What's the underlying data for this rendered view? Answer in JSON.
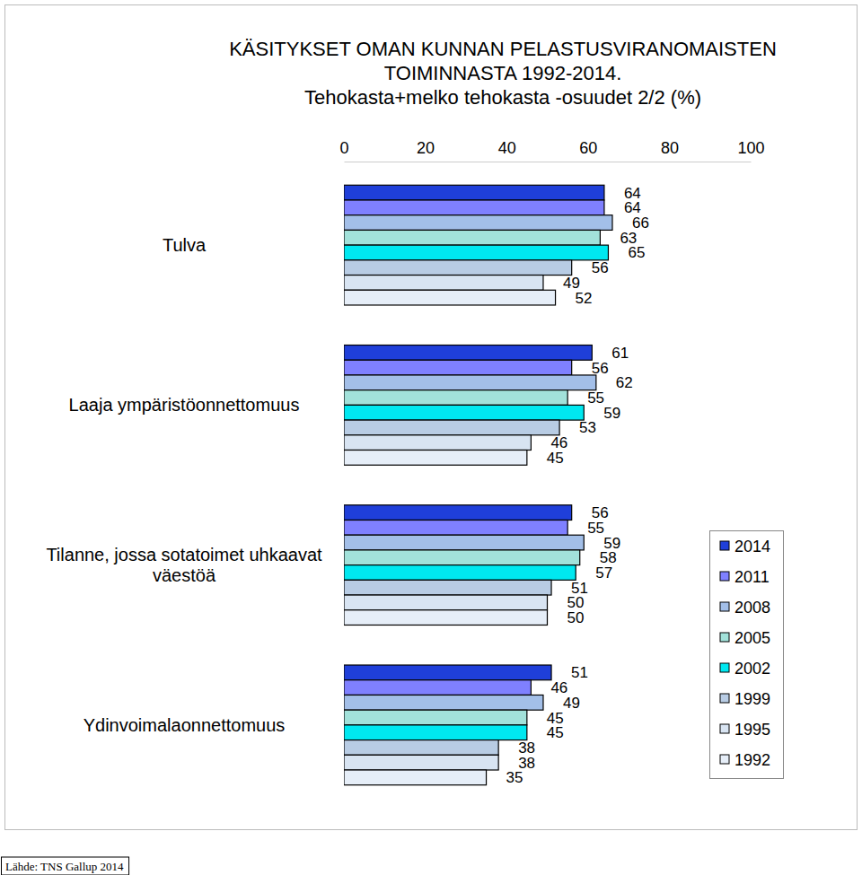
{
  "chart_data": {
    "type": "bar",
    "orientation": "horizontal",
    "title": "KÄSITYKSET OMAN KUNNAN PELASTUSVIRANOMAISTEN\nTOIMINNASTA 1992-2014.",
    "subtitle": "Tehokasta+melko tehokasta -osuudet 2/2 (%)",
    "annotations": [
      "Lähde: TNS Gallup 2014"
    ],
    "categories": [
      "Tulva",
      "Laaja ympäristöonnettomuus",
      "Tilanne, jossa sotatoimet uhkaavat väestöä",
      "Ydinvoimalaonnettomuus"
    ],
    "series": [
      {
        "name": "2014",
        "color": "#1f3fd9",
        "values": [
          64,
          61,
          56,
          51
        ]
      },
      {
        "name": "2011",
        "color": "#7f80ff",
        "values": [
          64,
          56,
          55,
          46
        ]
      },
      {
        "name": "2008",
        "color": "#a3bfe8",
        "values": [
          66,
          62,
          59,
          49
        ]
      },
      {
        "name": "2005",
        "color": "#a2e2da",
        "values": [
          63,
          55,
          58,
          45
        ]
      },
      {
        "name": "2002",
        "color": "#00e8f0",
        "values": [
          65,
          59,
          57,
          45
        ]
      },
      {
        "name": "1999",
        "color": "#b8cce4",
        "values": [
          56,
          53,
          51,
          38
        ]
      },
      {
        "name": "1995",
        "color": "#d8e4f2",
        "values": [
          49,
          46,
          50,
          38
        ]
      },
      {
        "name": "1992",
        "color": "#e6eef8",
        "values": [
          52,
          45,
          50,
          35
        ]
      }
    ],
    "xlim": [
      0,
      100
    ],
    "xticks": [
      0,
      20,
      40,
      60,
      80,
      100
    ],
    "grid": false,
    "legend": "right",
    "data_labels": true
  }
}
